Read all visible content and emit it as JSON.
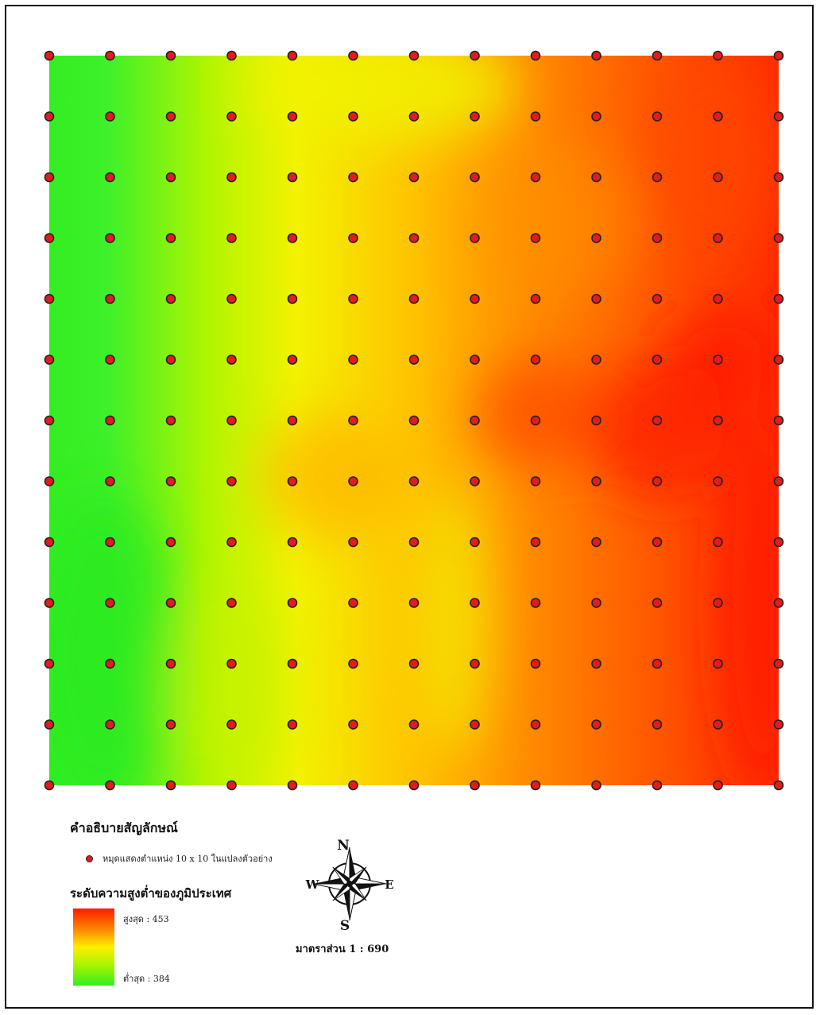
{
  "map": {
    "grid_columns": 13,
    "grid_rows": 13,
    "point_color": "#e41a1c",
    "point_outline": "#222222",
    "elevation_colors": {
      "high": "#ff1a00",
      "mid_high": "#ff8a00",
      "mid": "#ffee00",
      "mid_low": "#aef500",
      "low": "#33ee22"
    }
  },
  "legend": {
    "title": "คำอธิบายสัญลักษณ์",
    "point_label": "หมุดแสดงตำแหน่ง 10 x 10 ในแปลงตัวอย่าง",
    "elevation_title": "ระดับความสูงต่ำของภูมิประเทศ",
    "high_label": "สูงสุด : 453",
    "low_label": "ต่ำสุด : 384"
  },
  "compass": {
    "n": "N",
    "s": "S",
    "e": "E",
    "w": "W"
  },
  "scale": {
    "label": "มาตราส่วน 1 : 690"
  }
}
